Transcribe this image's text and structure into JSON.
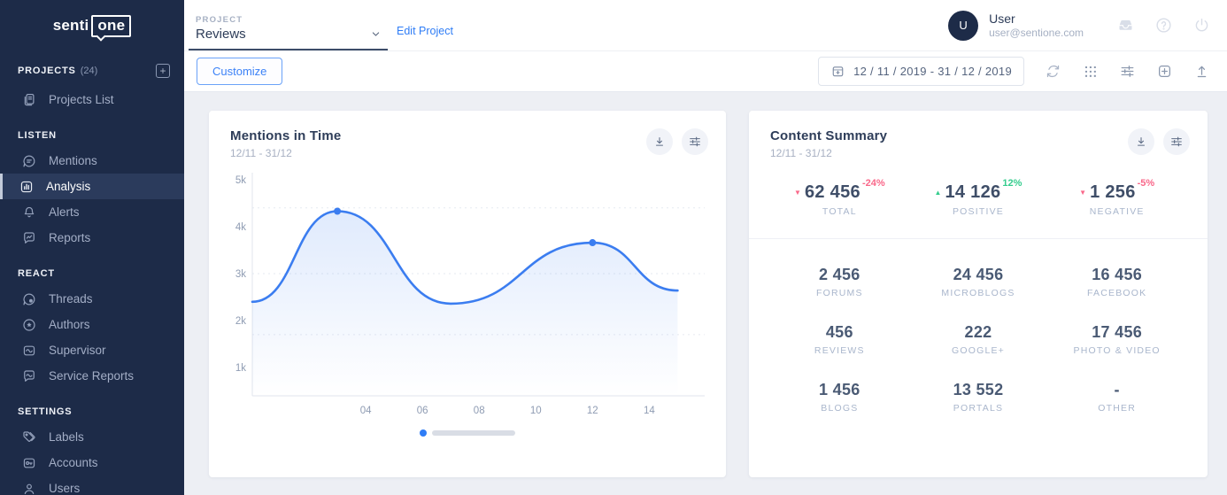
{
  "brand": {
    "prefix": "senti",
    "boxed": "one"
  },
  "sidebar": {
    "projects": {
      "label": "PROJECTS",
      "count": "(24)"
    },
    "sections": [
      {
        "title": "",
        "items": [
          {
            "label": "Projects List",
            "icon": "projects-list"
          }
        ]
      },
      {
        "title": "LISTEN",
        "items": [
          {
            "label": "Mentions",
            "icon": "mentions"
          },
          {
            "label": "Analysis",
            "icon": "analysis",
            "active": true
          },
          {
            "label": "Alerts",
            "icon": "alerts"
          },
          {
            "label": "Reports",
            "icon": "reports"
          }
        ]
      },
      {
        "title": "REACT",
        "items": [
          {
            "label": "Threads",
            "icon": "threads"
          },
          {
            "label": "Authors",
            "icon": "authors"
          },
          {
            "label": "Supervisor",
            "icon": "supervisor"
          },
          {
            "label": "Service Reports",
            "icon": "service-reports"
          }
        ]
      },
      {
        "title": "SETTINGS",
        "items": [
          {
            "label": "Labels",
            "icon": "labels"
          },
          {
            "label": "Accounts",
            "icon": "accounts"
          },
          {
            "label": "Users",
            "icon": "users"
          }
        ]
      }
    ]
  },
  "topbar": {
    "project_label": "PROJECT",
    "project_value": "Reviews",
    "edit_link": "Edit Project",
    "user": {
      "initial": "U",
      "name": "User",
      "email": "user@sentione.com"
    }
  },
  "toolbar": {
    "customize_label": "Customize",
    "date_range": "12 / 11 / 2019 - 31 / 12 / 2019"
  },
  "mentions_card": {
    "title": "Mentions in Time",
    "subtitle": "12/11 - 31/12"
  },
  "summary_card": {
    "title": "Content Summary",
    "subtitle": "12/11 - 31/12",
    "stats": [
      {
        "value": "62 456",
        "label": "TOTAL",
        "change": "-24%",
        "direction": "down"
      },
      {
        "value": "14 126",
        "label": "POSITIVE",
        "change": "12%",
        "direction": "up"
      },
      {
        "value": "1 256",
        "label": "NEGATIVE",
        "change": "-5%",
        "direction": "down"
      }
    ],
    "grid": [
      {
        "value": "2 456",
        "label": "FORUMS"
      },
      {
        "value": "24 456",
        "label": "MICROBLOGS"
      },
      {
        "value": "16 456",
        "label": "FACEBOOK"
      },
      {
        "value": "456",
        "label": "REVIEWS"
      },
      {
        "value": "222",
        "label": "GOOGLE+"
      },
      {
        "value": "17 456",
        "label": "PHOTO & VIDEO"
      },
      {
        "value": "1 456",
        "label": "BLOGS"
      },
      {
        "value": "13 552",
        "label": "PORTALS"
      },
      {
        "value": "-",
        "label": "OTHER"
      }
    ]
  },
  "chart_data": {
    "type": "line",
    "title": "Mentions in Time",
    "x": [
      0,
      3,
      7,
      12,
      15
    ],
    "values": [
      2400,
      4330,
      2360,
      3660,
      2640
    ],
    "markers": [
      3,
      12
    ],
    "x_ticks": [
      {
        "v": 4,
        "label": "04"
      },
      {
        "v": 6,
        "label": "06"
      },
      {
        "v": 8,
        "label": "08"
      },
      {
        "v": 10,
        "label": "10"
      },
      {
        "v": 12,
        "label": "12"
      },
      {
        "v": 14,
        "label": "14"
      }
    ],
    "y_ticks": [
      {
        "v": 5000,
        "label": "5k"
      },
      {
        "v": 4000,
        "label": "4k"
      },
      {
        "v": 3000,
        "label": "3k"
      },
      {
        "v": 2000,
        "label": "2k"
      },
      {
        "v": 1000,
        "label": "1k"
      }
    ],
    "gridlines": [
      4400,
      3000,
      1700
    ],
    "ylim": [
      400,
      5000
    ],
    "xlim": [
      0,
      15.8
    ],
    "line_color": "#3b7df0",
    "legend": "none",
    "xlabel": "",
    "ylabel": ""
  },
  "colors": {
    "accent_blue": "#2f7df6",
    "chart_line": "#3b7df0",
    "negative_pink": "#f9688a",
    "positive_green": "#35cd8e",
    "sidebar_navy": "#1d2b48"
  }
}
